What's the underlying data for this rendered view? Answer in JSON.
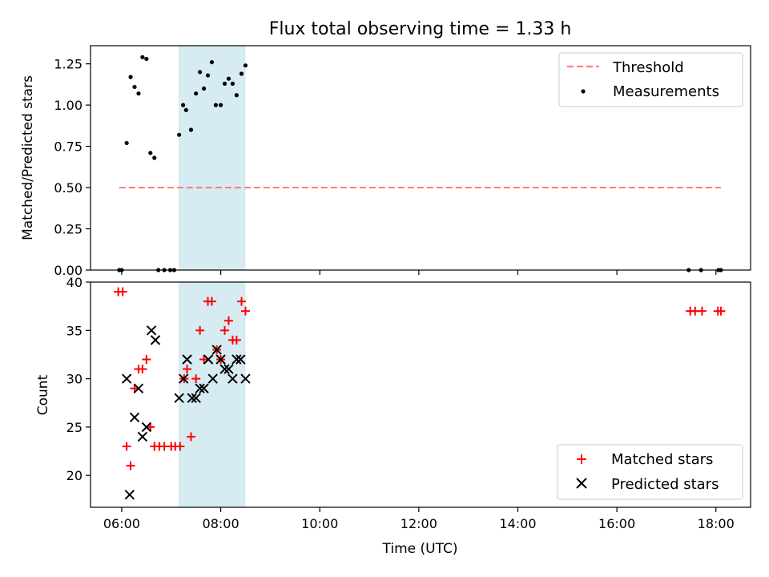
{
  "colors": {
    "threshold": "#ff7f7f",
    "measurements": "#000000",
    "matched": "#ff0000",
    "predicted": "#000000",
    "span": "#add8e6"
  },
  "chart_data": {
    "title": "Flux total observing time = 1.33 h",
    "x_unit": "hours (UTC)",
    "xlabel": "Time (UTC)",
    "x_ticks": [
      6,
      8,
      10,
      12,
      14,
      16,
      18
    ],
    "x_tick_labels": [
      "06:00",
      "08:00",
      "10:00",
      "12:00",
      "14:00",
      "16:00",
      "18:00"
    ],
    "xlim": [
      5.37,
      18.7
    ],
    "highlight_span": [
      7.15,
      8.5
    ],
    "top": {
      "type": "scatter",
      "ylabel": "Matched/Predicted stars",
      "ylim": [
        0,
        1.36
      ],
      "y_ticks": [
        0,
        0.25,
        0.5,
        0.75,
        1.0,
        1.25
      ],
      "y_tick_labels": [
        "0.00",
        "0.25",
        "0.50",
        "0.75",
        "1.00",
        "1.25"
      ],
      "legend_position": "top-right",
      "threshold": {
        "name": "Threshold",
        "y": 0.5,
        "x_range": [
          5.95,
          18.1
        ]
      },
      "measurements": {
        "name": "Measurements",
        "points": [
          [
            5.95,
            0.0
          ],
          [
            6.0,
            0.0
          ],
          [
            6.1,
            0.77
          ],
          [
            6.18,
            1.17
          ],
          [
            6.26,
            1.11
          ],
          [
            6.34,
            1.07
          ],
          [
            6.42,
            1.29
          ],
          [
            6.5,
            1.28
          ],
          [
            6.58,
            0.71
          ],
          [
            6.66,
            0.68
          ],
          [
            6.74,
            0.0
          ],
          [
            6.86,
            0.0
          ],
          [
            6.98,
            0.0
          ],
          [
            7.06,
            0.0
          ],
          [
            7.16,
            0.82
          ],
          [
            7.24,
            1.0
          ],
          [
            7.3,
            0.97
          ],
          [
            7.4,
            0.85
          ],
          [
            7.5,
            1.07
          ],
          [
            7.58,
            1.2
          ],
          [
            7.66,
            1.1
          ],
          [
            7.74,
            1.18
          ],
          [
            7.82,
            1.26
          ],
          [
            7.9,
            1.0
          ],
          [
            8.0,
            1.0
          ],
          [
            8.08,
            1.13
          ],
          [
            8.16,
            1.16
          ],
          [
            8.24,
            1.13
          ],
          [
            8.32,
            1.06
          ],
          [
            8.42,
            1.19
          ],
          [
            8.5,
            1.24
          ],
          [
            17.45,
            0.0
          ],
          [
            17.7,
            0.0
          ],
          [
            18.05,
            0.0
          ],
          [
            18.1,
            0.0
          ]
        ]
      }
    },
    "bottom": {
      "type": "scatter",
      "ylabel": "Count",
      "ylim": [
        16.7,
        40
      ],
      "y_ticks": [
        20,
        25,
        30,
        35,
        40
      ],
      "y_tick_labels": [
        "20",
        "25",
        "30",
        "35",
        "40"
      ],
      "legend_position": "bottom-right",
      "series": [
        {
          "name": "Matched stars",
          "marker": "plus",
          "points": [
            [
              5.93,
              39
            ],
            [
              6.02,
              39
            ],
            [
              6.1,
              23
            ],
            [
              6.18,
              21
            ],
            [
              6.26,
              29
            ],
            [
              6.34,
              31
            ],
            [
              6.42,
              31
            ],
            [
              6.5,
              32
            ],
            [
              6.58,
              25
            ],
            [
              6.66,
              23
            ],
            [
              6.76,
              23
            ],
            [
              6.86,
              23
            ],
            [
              7.0,
              23
            ],
            [
              7.08,
              23
            ],
            [
              7.18,
              23
            ],
            [
              7.26,
              30
            ],
            [
              7.32,
              31
            ],
            [
              7.4,
              24
            ],
            [
              7.5,
              30
            ],
            [
              7.58,
              35
            ],
            [
              7.66,
              32
            ],
            [
              7.74,
              38
            ],
            [
              7.82,
              38
            ],
            [
              7.92,
              33
            ],
            [
              8.0,
              32
            ],
            [
              8.08,
              35
            ],
            [
              8.16,
              36
            ],
            [
              8.24,
              34
            ],
            [
              8.32,
              34
            ],
            [
              8.42,
              38
            ],
            [
              8.5,
              37
            ],
            [
              17.48,
              37
            ],
            [
              17.58,
              37
            ],
            [
              17.72,
              37
            ],
            [
              18.04,
              37
            ],
            [
              18.1,
              37
            ]
          ]
        },
        {
          "name": "Predicted stars",
          "marker": "x",
          "points": [
            [
              6.1,
              30
            ],
            [
              6.16,
              18
            ],
            [
              6.26,
              26
            ],
            [
              6.34,
              29
            ],
            [
              6.42,
              24
            ],
            [
              6.5,
              25
            ],
            [
              6.6,
              35
            ],
            [
              6.68,
              34
            ],
            [
              7.16,
              28
            ],
            [
              7.25,
              30
            ],
            [
              7.32,
              32
            ],
            [
              7.42,
              28
            ],
            [
              7.5,
              28
            ],
            [
              7.58,
              29
            ],
            [
              7.66,
              29
            ],
            [
              7.75,
              32
            ],
            [
              7.84,
              30
            ],
            [
              7.92,
              33
            ],
            [
              8.0,
              32
            ],
            [
              8.08,
              31
            ],
            [
              8.16,
              31
            ],
            [
              8.24,
              30
            ],
            [
              8.32,
              32
            ],
            [
              8.4,
              32
            ],
            [
              8.5,
              30
            ]
          ]
        }
      ]
    }
  }
}
